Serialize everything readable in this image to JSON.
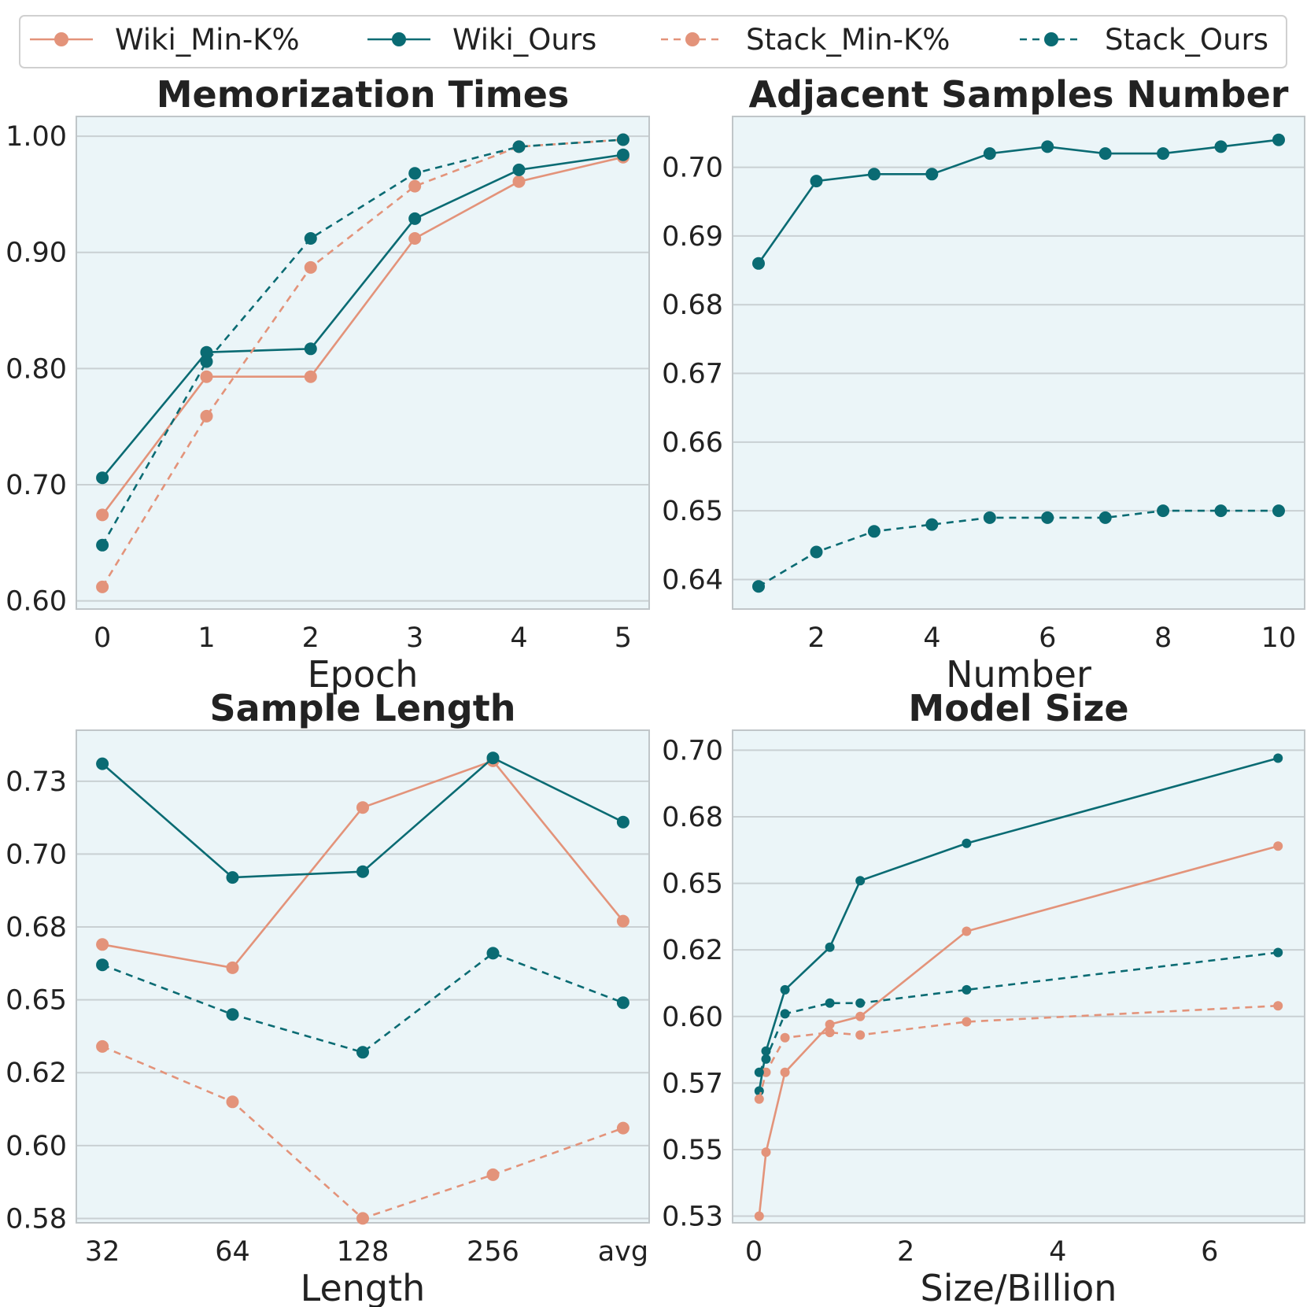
{
  "colors": {
    "min_k": "#e3937a",
    "ours": "#0a6b73",
    "panel_bg": "#ebf5f8",
    "grid": "#c9d0d3",
    "spine": "#c0c6c9"
  },
  "legend": {
    "placement": "top",
    "entries": [
      {
        "label": "Wiki_Min-K%",
        "color": "#e3937a",
        "dashed": false
      },
      {
        "label": "Wiki_Ours",
        "color": "#0a6b73",
        "dashed": false
      },
      {
        "label": "Stack_Min-K%",
        "color": "#e3937a",
        "dashed": true
      },
      {
        "label": "Stack_Ours",
        "color": "#0a6b73",
        "dashed": true
      }
    ]
  },
  "chart_data": [
    {
      "type": "line",
      "title": "Memorization Times",
      "xlabel": "Epoch",
      "x": [
        0,
        1,
        2,
        3,
        4,
        5
      ],
      "xlim": [
        -0.25,
        5.25
      ],
      "xticks": [
        0,
        1,
        2,
        3,
        4,
        5
      ],
      "xticklabels": [
        "0",
        "1",
        "2",
        "3",
        "4",
        "5"
      ],
      "ylim": [
        0.593,
        1.017
      ],
      "yticks": [
        0.6,
        0.7,
        0.8,
        0.9,
        1.0
      ],
      "yticklabels": [
        "0.60",
        "0.70",
        "0.80",
        "0.90",
        "1.00"
      ],
      "grid": true,
      "series": [
        {
          "name": "Wiki_Min-K%",
          "values": [
            0.674,
            0.793,
            0.793,
            0.912,
            0.961,
            0.982
          ]
        },
        {
          "name": "Wiki_Ours",
          "values": [
            0.706,
            0.814,
            0.817,
            0.929,
            0.971,
            0.984
          ]
        },
        {
          "name": "Stack_Min-K%",
          "values": [
            0.612,
            0.759,
            0.887,
            0.957,
            0.991,
            0.997
          ]
        },
        {
          "name": "Stack_Ours",
          "values": [
            0.648,
            0.806,
            0.912,
            0.968,
            0.991,
            0.997
          ]
        }
      ]
    },
    {
      "type": "line",
      "title": "Adjacent Samples Number",
      "xlabel": "Number",
      "x": [
        1,
        2,
        3,
        4,
        5,
        6,
        7,
        8,
        9,
        10
      ],
      "xlim": [
        0.55,
        10.45
      ],
      "xticks": [
        2,
        4,
        6,
        8,
        10
      ],
      "xticklabels": [
        "2",
        "4",
        "6",
        "8",
        "10"
      ],
      "ylim": [
        0.6357,
        0.7074
      ],
      "yticks": [
        0.64,
        0.65,
        0.66,
        0.67,
        0.68,
        0.69,
        0.7
      ],
      "yticklabels": [
        "0.64",
        "0.65",
        "0.66",
        "0.67",
        "0.68",
        "0.69",
        "0.70"
      ],
      "grid": true,
      "series": [
        {
          "name": "Wiki_Ours",
          "values": [
            0.686,
            0.698,
            0.699,
            0.699,
            0.702,
            0.703,
            0.702,
            0.702,
            0.703,
            0.704
          ]
        },
        {
          "name": "Stack_Ours",
          "values": [
            0.639,
            0.644,
            0.647,
            0.648,
            0.649,
            0.649,
            0.649,
            0.65,
            0.65,
            0.65
          ]
        }
      ]
    },
    {
      "type": "line",
      "title": "Sample Length",
      "xlabel": "Length",
      "categories": [
        "32",
        "64",
        "128",
        "256",
        "avg"
      ],
      "xlim": [
        -0.2,
        4.2
      ],
      "ylim": [
        0.5735,
        0.7425
      ],
      "yticks": [
        0.575,
        0.6,
        0.625,
        0.65,
        0.675,
        0.7,
        0.725
      ],
      "yticklabels": [
        "0.58",
        "0.60",
        "0.62",
        "0.65",
        "0.68",
        "0.70",
        "0.73"
      ],
      "grid": true,
      "series": [
        {
          "name": "Wiki_Min-K%",
          "values": [
            0.669,
            0.661,
            0.716,
            0.732,
            0.677
          ]
        },
        {
          "name": "Wiki_Ours",
          "values": [
            0.731,
            0.692,
            0.694,
            0.733,
            0.711
          ]
        },
        {
          "name": "Stack_Min-K%",
          "values": [
            0.634,
            0.615,
            0.575,
            0.59,
            0.606
          ]
        },
        {
          "name": "Stack_Ours",
          "values": [
            0.662,
            0.645,
            0.632,
            0.666,
            0.649
          ]
        }
      ]
    },
    {
      "type": "line",
      "title": "Model Size",
      "xlabel": "Size/Billion",
      "x": [
        0.07,
        0.16,
        0.41,
        1.0,
        1.4,
        2.8,
        6.9
      ],
      "xlim": [
        -0.28,
        7.25
      ],
      "xticks": [
        0,
        2,
        4,
        6
      ],
      "xticklabels": [
        "0",
        "2",
        "4",
        "6"
      ],
      "ylim": [
        0.5225,
        0.7075
      ],
      "yticks": [
        0.525,
        0.55,
        0.575,
        0.6,
        0.625,
        0.65,
        0.675,
        0.7
      ],
      "yticklabels": [
        "0.53",
        "0.55",
        "0.57",
        "0.60",
        "0.62",
        "0.65",
        "0.68",
        "0.70"
      ],
      "grid": true,
      "series": [
        {
          "name": "Wiki_Min-K%",
          "x": [
            0.07,
            0.16,
            0.41,
            1.0,
            1.4,
            2.8,
            6.9
          ],
          "values": [
            0.525,
            0.549,
            0.579,
            0.597,
            0.6,
            0.632,
            0.664
          ]
        },
        {
          "name": "Wiki_Ours",
          "x": [
            0.07,
            0.16,
            0.41,
            1.0,
            1.4,
            2.8,
            6.9
          ],
          "values": [
            0.572,
            0.587,
            0.61,
            0.626,
            0.651,
            0.665,
            0.697
          ]
        },
        {
          "name": "Stack_Min-K%",
          "x": [
            0.07,
            0.16,
            0.41,
            1.0,
            1.4,
            2.8,
            6.9
          ],
          "values": [
            0.569,
            0.579,
            0.592,
            0.594,
            0.593,
            0.598,
            0.604
          ]
        },
        {
          "name": "Stack_Ours",
          "x": [
            0.07,
            0.16,
            0.41,
            1.0,
            1.4,
            2.8,
            6.9
          ],
          "values": [
            0.579,
            0.584,
            0.601,
            0.605,
            0.605,
            0.61,
            0.624
          ]
        }
      ]
    }
  ]
}
